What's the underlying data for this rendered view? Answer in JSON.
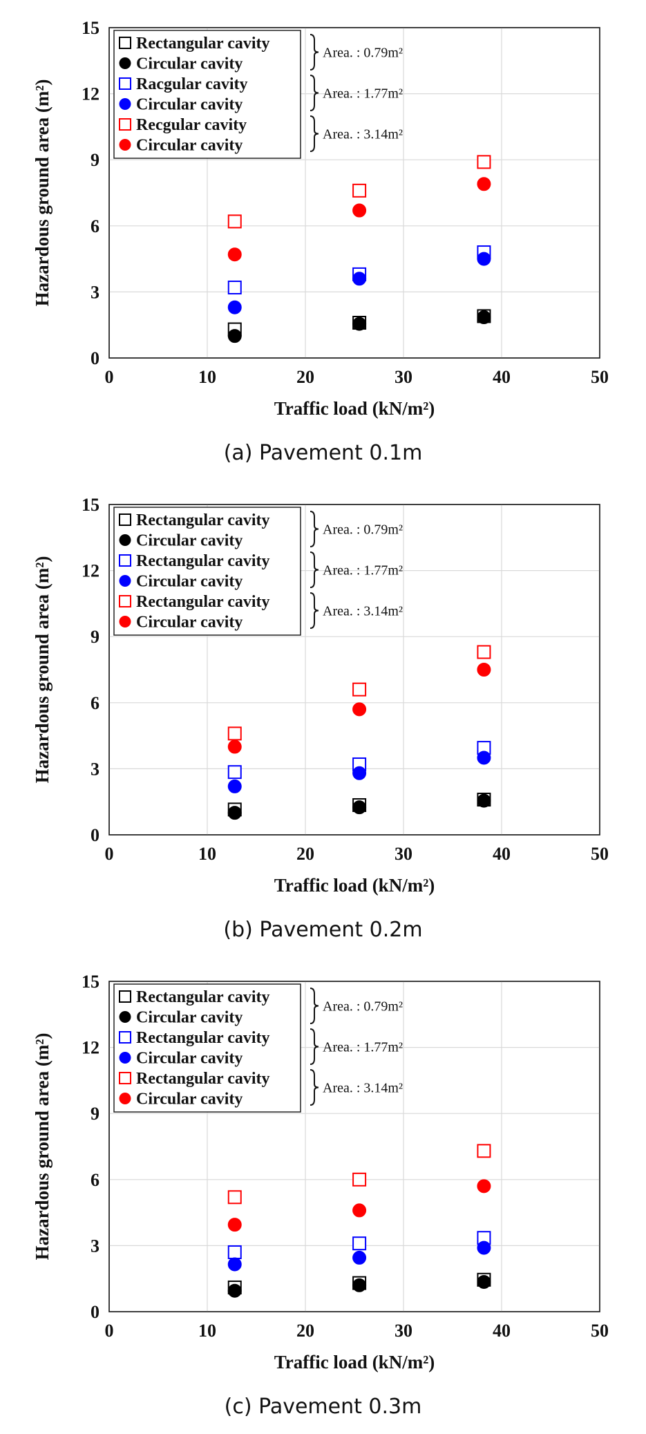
{
  "chart_data": [
    {
      "type": "scatter",
      "caption": "(a) Pavement 0.1m",
      "xlabel": "Traffic load (kN/m²)",
      "ylabel": "Hazardous ground area (m²)",
      "xlim": [
        0,
        50
      ],
      "ylim": [
        0,
        15
      ],
      "xticks": [
        "0",
        "10",
        "20",
        "30",
        "40",
        "50"
      ],
      "yticks": [
        "0",
        "3",
        "6",
        "9",
        "12",
        "15"
      ],
      "grid": true,
      "legend_position": "top-left",
      "x": [
        12.8,
        25.5,
        38.2
      ],
      "series": [
        {
          "name": "Rectangular cavity",
          "marker": "square-open",
          "color": "#000000",
          "values": [
            1.3,
            1.6,
            1.9
          ]
        },
        {
          "name": "Circular cavity",
          "marker": "circle-filled",
          "color": "#000000",
          "values": [
            1.0,
            1.55,
            1.85
          ]
        },
        {
          "name": "Racgular cavity",
          "marker": "square-open",
          "color": "#0000ff",
          "values": [
            3.2,
            3.8,
            4.8
          ]
        },
        {
          "name": "Circular cavity",
          "marker": "circle-filled",
          "color": "#0000ff",
          "values": [
            2.3,
            3.6,
            4.5
          ]
        },
        {
          "name": "Recgular cavity",
          "marker": "square-open",
          "color": "#ff0000",
          "values": [
            6.2,
            7.6,
            8.9
          ]
        },
        {
          "name": "Circular cavity",
          "marker": "circle-filled",
          "color": "#ff0000",
          "values": [
            4.7,
            6.7,
            7.9
          ]
        }
      ],
      "area_labels": [
        "Area. : 0.79m²",
        "Area. : 1.77m²",
        "Area. : 3.14m²"
      ]
    },
    {
      "type": "scatter",
      "caption": "(b) Pavement 0.2m",
      "xlabel": "Traffic load (kN/m²)",
      "ylabel": "Hazardous ground area (m²)",
      "xlim": [
        0,
        50
      ],
      "ylim": [
        0,
        15
      ],
      "xticks": [
        "0",
        "10",
        "20",
        "30",
        "40",
        "50"
      ],
      "yticks": [
        "0",
        "3",
        "6",
        "9",
        "12",
        "15"
      ],
      "grid": true,
      "legend_position": "top-left",
      "x": [
        12.8,
        25.5,
        38.2
      ],
      "series": [
        {
          "name": "Rectangular cavity",
          "marker": "square-open",
          "color": "#000000",
          "values": [
            1.15,
            1.35,
            1.6
          ]
        },
        {
          "name": "Circular cavity",
          "marker": "circle-filled",
          "color": "#000000",
          "values": [
            1.0,
            1.25,
            1.55
          ]
        },
        {
          "name": "Rectangular cavity",
          "marker": "square-open",
          "color": "#0000ff",
          "values": [
            2.85,
            3.2,
            3.95
          ]
        },
        {
          "name": "Circular cavity",
          "marker": "circle-filled",
          "color": "#0000ff",
          "values": [
            2.2,
            2.8,
            3.5
          ]
        },
        {
          "name": "Rectangular cavity",
          "marker": "square-open",
          "color": "#ff0000",
          "values": [
            4.6,
            6.6,
            8.3
          ]
        },
        {
          "name": "Circular cavity",
          "marker": "circle-filled",
          "color": "#ff0000",
          "values": [
            4.0,
            5.7,
            7.5
          ]
        }
      ],
      "area_labels": [
        "Area. : 0.79m²",
        "Area. : 1.77m²",
        "Area. : 3.14m²"
      ]
    },
    {
      "type": "scatter",
      "caption": "(c) Pavement 0.3m",
      "xlabel": "Traffic load (kN/m²)",
      "ylabel": "Hazardous ground area (m²)",
      "xlim": [
        0,
        50
      ],
      "ylim": [
        0,
        15
      ],
      "xticks": [
        "0",
        "10",
        "20",
        "30",
        "40",
        "50"
      ],
      "yticks": [
        "0",
        "3",
        "6",
        "9",
        "12",
        "15"
      ],
      "grid": true,
      "legend_position": "top-left",
      "x": [
        12.8,
        25.5,
        38.2
      ],
      "series": [
        {
          "name": "Rectangular cavity",
          "marker": "square-open",
          "color": "#000000",
          "values": [
            1.1,
            1.3,
            1.45
          ]
        },
        {
          "name": "Circular cavity",
          "marker": "circle-filled",
          "color": "#000000",
          "values": [
            0.95,
            1.2,
            1.35
          ]
        },
        {
          "name": "Rectangular cavity",
          "marker": "square-open",
          "color": "#0000ff",
          "values": [
            2.7,
            3.1,
            3.35
          ]
        },
        {
          "name": "Circular cavity",
          "marker": "circle-filled",
          "color": "#0000ff",
          "values": [
            2.15,
            2.45,
            2.9
          ]
        },
        {
          "name": "Rectangular cavity",
          "marker": "square-open",
          "color": "#ff0000",
          "values": [
            5.2,
            6.0,
            7.3
          ]
        },
        {
          "name": "Circular cavity",
          "marker": "circle-filled",
          "color": "#ff0000",
          "values": [
            3.95,
            4.6,
            5.7
          ]
        }
      ],
      "area_labels": [
        "Area. : 0.79m²",
        "Area. : 1.77m²",
        "Area. : 3.14m²"
      ]
    }
  ]
}
